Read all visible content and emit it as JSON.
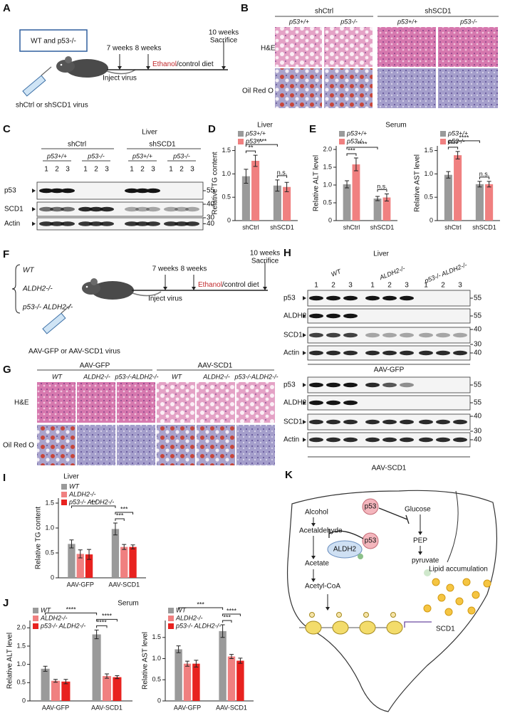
{
  "figure": {
    "A": {
      "label": "A",
      "box": "WT and p53-/-",
      "t1": "7 weeks",
      "t2": "8 weeks",
      "t3a": "10 weeks",
      "t3b": "Sacrifice",
      "inject": "Inject virus",
      "ethanol": "Ethanol",
      "diet": "/control diet",
      "virus": "shCtrl or shSCD1 virus"
    },
    "B": {
      "label": "B",
      "groups": [
        "shCtrl",
        "shSCD1"
      ],
      "genotypes": [
        "p53+/+",
        "p53-/-",
        "p53+/+",
        "p53-/-"
      ],
      "rows": [
        "H&E",
        "Oil Red O"
      ]
    },
    "C": {
      "label": "C",
      "tissue": "Liver",
      "groups": [
        "shCtrl",
        "shSCD1"
      ],
      "genotypes": [
        "p53+/+",
        "p53-/-",
        "p53+/+",
        "p53-/-"
      ],
      "lanes": [
        "1",
        "2",
        "3"
      ],
      "rows": [
        {
          "name": "p53",
          "markers": [
            "55"
          ]
        },
        {
          "name": "SCD1",
          "markers": [
            "40",
            "30"
          ]
        },
        {
          "name": "Actin",
          "markers": [
            "40"
          ]
        }
      ]
    },
    "F": {
      "label": "F",
      "genotypes": [
        "WT",
        "ALDH2-/-",
        "p53-/- ALDH2-/-"
      ],
      "t1": "7 weeks",
      "t2": "8 weeks",
      "t3a": "10 weeks",
      "t3b": "Sacrifice",
      "inject": "Inject virus",
      "ethanol": "Ethanol",
      "diet": "/control diet",
      "virus": "AAV-GFP or AAV-SCD1 virus"
    },
    "G": {
      "label": "G",
      "groups": [
        "AAV-GFP",
        "AAV-SCD1"
      ],
      "genotypes": [
        "WT",
        "ALDH2-/-",
        "p53-/-ALDH2-/-"
      ],
      "rows": [
        "H&E",
        "Oil Red O"
      ]
    },
    "H": {
      "label": "H",
      "tissue": "Liver",
      "groups": [
        "WT",
        "ALDH2-/-",
        "p53-/- ALDH2-/-"
      ],
      "lanes": [
        "1",
        "2",
        "3"
      ],
      "panels": [
        {
          "name": "AAV-GFP",
          "rows": [
            {
              "name": "p53",
              "markers": [
                "55"
              ]
            },
            {
              "name": "ALDH2",
              "markers": [
                "55"
              ]
            },
            {
              "name": "SCD1",
              "markers": [
                "40",
                "30"
              ]
            },
            {
              "name": "Actin",
              "markers": [
                "40"
              ]
            }
          ]
        },
        {
          "name": "AAV-SCD1",
          "rows": [
            {
              "name": "p53",
              "markers": [
                "55"
              ]
            },
            {
              "name": "ALDH2",
              "markers": [
                "55"
              ]
            },
            {
              "name": "SCD1",
              "markers": [
                "40",
                "30"
              ]
            },
            {
              "name": "Actin",
              "markers": [
                "40"
              ]
            }
          ]
        }
      ]
    },
    "K": {
      "label": "K",
      "alcohol": "Alcohol",
      "acetaldehyde": "Acetaldehyde",
      "aldh2": "ALDH2",
      "p53": "p53",
      "acetate": "Acetate",
      "acetylcoa": "Acetyl-CoA",
      "glucose": "Glucose",
      "pep": "PEP",
      "pyruvate": "pyruvate",
      "lipid": "Lipid accumulation",
      "scd1": "SCD1"
    }
  },
  "chart_data": [
    {
      "type": "bar",
      "label": "D",
      "title": "Liver",
      "ylabel": "Relative TG content",
      "categories": [
        "shCtrl",
        "shSCD1"
      ],
      "series": [
        {
          "name": "p53+/+",
          "color": "#9a9a9a",
          "values": [
            0.95,
            0.75
          ],
          "errors": [
            0.15,
            0.12
          ]
        },
        {
          "name": "p53-/-",
          "color": "#f08080",
          "values": [
            1.28,
            0.72
          ],
          "errors": [
            0.12,
            0.1
          ]
        }
      ],
      "ylim": [
        0,
        1.6
      ],
      "yticks": [
        0,
        0.5,
        {
          "value": 1,
          "label": "1.0"
        },
        1.5
      ],
      "annotations": [
        "**",
        "****",
        "n.s."
      ]
    },
    {
      "type": "bar",
      "label": "E",
      "title": "Serum",
      "ylabel": "Relative ALT level",
      "categories": [
        "shCtrl",
        "shSCD1"
      ],
      "series": [
        {
          "name": "p53+/+",
          "color": "#9a9a9a",
          "values": [
            1.02,
            0.62
          ],
          "errors": [
            0.1,
            0.06
          ]
        },
        {
          "name": "p53-/-",
          "color": "#f08080",
          "values": [
            1.58,
            0.65
          ],
          "errors": [
            0.18,
            0.1
          ]
        }
      ],
      "ylim": [
        0,
        2.1
      ],
      "yticks": [
        0,
        0.5,
        {
          "value": 1,
          "label": "1.0"
        },
        1.5,
        {
          "value": 2,
          "label": "2.0"
        }
      ],
      "annotations": [
        "***",
        "****",
        "n.s."
      ]
    },
    {
      "type": "bar",
      "ylabel": "Relative AST level",
      "categories": [
        "shCtrl",
        "shSCD1"
      ],
      "series": [
        {
          "name": "p53+/+",
          "color": "#9a9a9a",
          "values": [
            0.98,
            0.78
          ],
          "errors": [
            0.07,
            0.06
          ]
        },
        {
          "name": "p53-/-",
          "color": "#f08080",
          "values": [
            1.4,
            0.78
          ],
          "errors": [
            0.08,
            0.06
          ]
        }
      ],
      "ylim": [
        0,
        1.6
      ],
      "yticks": [
        0,
        0.5,
        {
          "value": 1,
          "label": "1.0"
        },
        1.5
      ],
      "annotations": [
        "****",
        "****",
        "n.s."
      ]
    },
    {
      "type": "bar",
      "label": "I",
      "title": "Liver",
      "ylabel": "Relative TG content",
      "categories": [
        "AAV-GFP",
        "AAV-SCD1"
      ],
      "series": [
        {
          "name": "WT",
          "color": "#9a9a9a",
          "values": [
            0.68,
            0.98
          ],
          "errors": [
            0.08,
            0.12
          ]
        },
        {
          "name": "ALDH2-/-",
          "color": "#f08080",
          "values": [
            0.48,
            0.62
          ],
          "errors": [
            0.08,
            0.05
          ]
        },
        {
          "name": "p53-/- ALDH2-/-",
          "color": "#e8221f",
          "values": [
            0.47,
            0.62
          ],
          "errors": [
            0.1,
            0.04
          ]
        }
      ],
      "ylim": [
        0,
        1.6
      ],
      "yticks": [
        0,
        0.5,
        {
          "value": 1,
          "label": "1.0"
        },
        1.5
      ],
      "annotations": [
        "**",
        "***",
        "***"
      ]
    },
    {
      "type": "bar",
      "label": "J",
      "title": "Serum",
      "ylabel": "Relative ALT level",
      "categories": [
        "AAV-GFP",
        "AAV-SCD1"
      ],
      "series": [
        {
          "name": "WT",
          "color": "#9a9a9a",
          "values": [
            0.88,
            1.82
          ],
          "errors": [
            0.07,
            0.12
          ]
        },
        {
          "name": "ALDH2-/-",
          "color": "#f08080",
          "values": [
            0.55,
            0.68
          ],
          "errors": [
            0.04,
            0.06
          ]
        },
        {
          "name": "p53-/- ALDH2-/-",
          "color": "#e8221f",
          "values": [
            0.53,
            0.65
          ],
          "errors": [
            0.06,
            0.04
          ]
        }
      ],
      "ylim": [
        0,
        2.2
      ],
      "yticks": [
        0,
        0.5,
        {
          "value": 1,
          "label": "1.0"
        },
        1.5,
        {
          "value": 2,
          "label": "2.0"
        }
      ],
      "annotations": [
        "****",
        "****",
        "****"
      ]
    },
    {
      "type": "bar",
      "ylabel": "Relative AST level",
      "categories": [
        "AAV-GFP",
        "AAV-SCD1"
      ],
      "series": [
        {
          "name": "WT",
          "color": "#9a9a9a",
          "values": [
            1.22,
            1.65
          ],
          "errors": [
            0.08,
            0.15
          ]
        },
        {
          "name": "ALDH2-/-",
          "color": "#f08080",
          "values": [
            0.88,
            1.05
          ],
          "errors": [
            0.06,
            0.05
          ]
        },
        {
          "name": "p53-/- ALDH2-/-",
          "color": "#e8221f",
          "values": [
            0.88,
            0.95
          ],
          "errors": [
            0.08,
            0.06
          ]
        }
      ],
      "ylim": [
        0,
        1.9
      ],
      "yticks": [
        0,
        0.5,
        {
          "value": 1,
          "label": "1.0"
        },
        1.5
      ],
      "annotations": [
        "***",
        "***",
        "****"
      ]
    }
  ]
}
